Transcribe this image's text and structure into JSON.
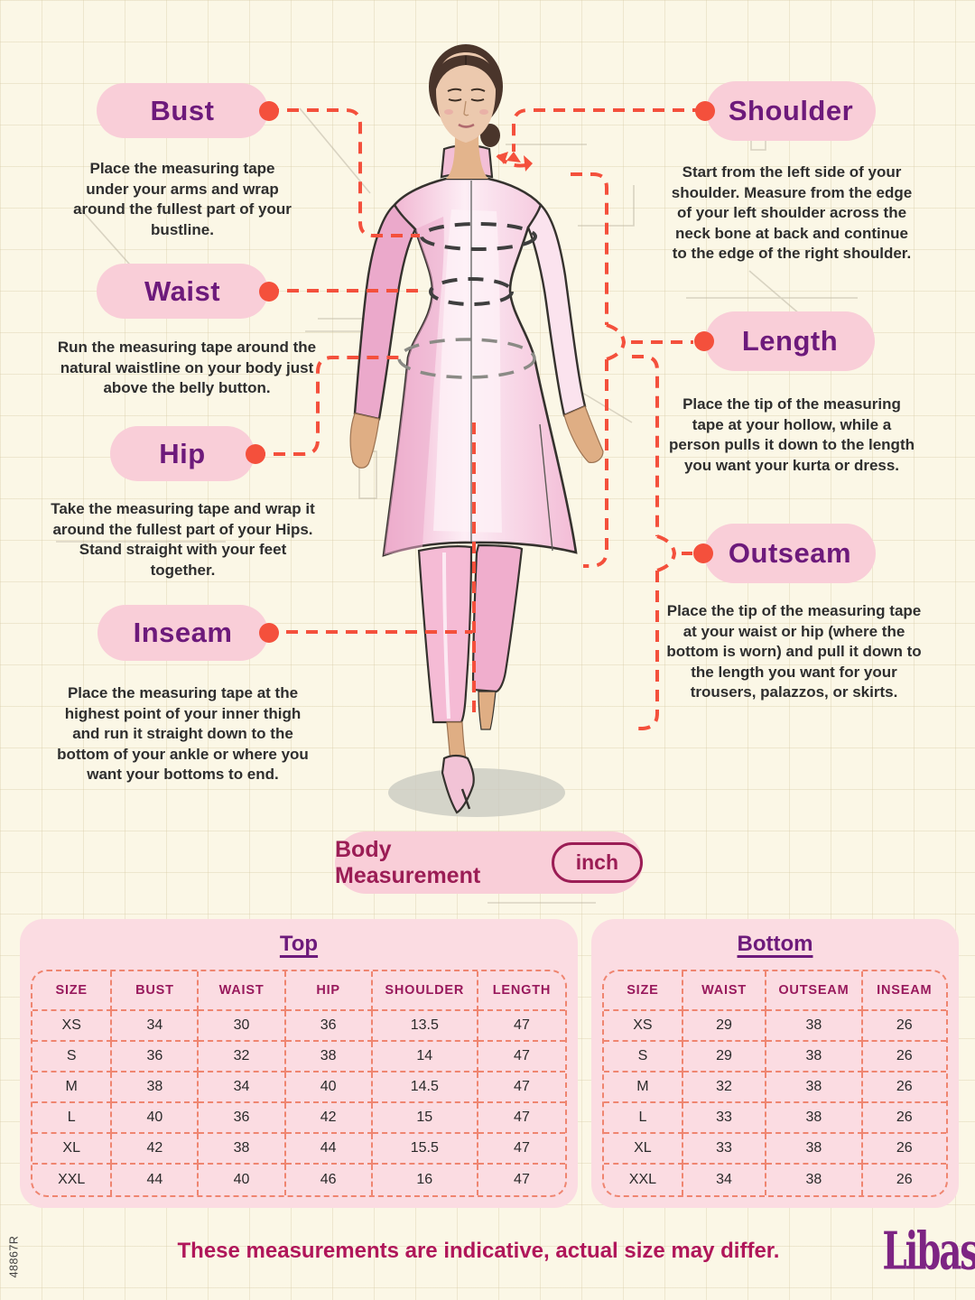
{
  "colors": {
    "background": "#fbf7e6",
    "pill_pink": "#f9ced8",
    "accent_red": "#f4503c",
    "title_purple": "#6d1a7b",
    "magenta": "#9b1d55",
    "table_bg": "#fbdce2",
    "table_border": "#ef8570",
    "footer_pink": "#b0165a",
    "logo_purple": "#7d2483"
  },
  "callouts": {
    "bust": {
      "title": "Bust",
      "description": "Place the measuring tape under your arms and wrap around the fullest part of your bustline."
    },
    "waist": {
      "title": "Waist",
      "description": "Run the measuring tape around the natural waistline on your body just above the belly button."
    },
    "hip": {
      "title": "Hip",
      "description": "Take the measuring tape and wrap it around the fullest part of your Hips. Stand straight with your feet together."
    },
    "inseam": {
      "title": "Inseam",
      "description": "Place the measuring tape at the highest point of your inner thigh and run it straight down to the bottom of your ankle or where you want your bottoms to end."
    },
    "shoulder": {
      "title": "Shoulder",
      "description": "Start from the left side of your shoulder. Measure from the edge of your left shoulder across the neck bone at back and continue to the edge of the right shoulder."
    },
    "length": {
      "title": "Length",
      "description": "Place the tip of the measuring tape at your hollow, while a person pulls it down to the length you want your kurta or dress."
    },
    "outseam": {
      "title": "Outseam",
      "description": "Place the tip of the measuring tape at your waist or hip (where the bottom is worn) and pull it down to the length you want for your trousers, palazzos, or skirts."
    }
  },
  "body_measurement": {
    "label": "Body Measurement",
    "unit": "inch"
  },
  "tables": {
    "top": {
      "title": "Top",
      "headers": [
        "SIZE",
        "BUST",
        "WAIST",
        "HIP",
        "SHOULDER",
        "LENGTH"
      ],
      "rows": [
        [
          "XS",
          "34",
          "30",
          "36",
          "13.5",
          "47"
        ],
        [
          "S",
          "36",
          "32",
          "38",
          "14",
          "47"
        ],
        [
          "M",
          "38",
          "34",
          "40",
          "14.5",
          "47"
        ],
        [
          "L",
          "40",
          "36",
          "42",
          "15",
          "47"
        ],
        [
          "XL",
          "42",
          "38",
          "44",
          "15.5",
          "47"
        ],
        [
          "XXL",
          "44",
          "40",
          "46",
          "16",
          "47"
        ]
      ]
    },
    "bottom": {
      "title": "Bottom",
      "headers": [
        "SIZE",
        "WAIST",
        "OUTSEAM",
        "INSEAM"
      ],
      "rows": [
        [
          "XS",
          "29",
          "38",
          "26"
        ],
        [
          "S",
          "29",
          "38",
          "26"
        ],
        [
          "M",
          "32",
          "38",
          "26"
        ],
        [
          "L",
          "33",
          "38",
          "26"
        ],
        [
          "XL",
          "33",
          "38",
          "26"
        ],
        [
          "XXL",
          "34",
          "38",
          "26"
        ]
      ]
    }
  },
  "footer": {
    "note": "These measurements are indicative, actual size may differ.",
    "logo": "Libas"
  },
  "side_code": "48867R"
}
